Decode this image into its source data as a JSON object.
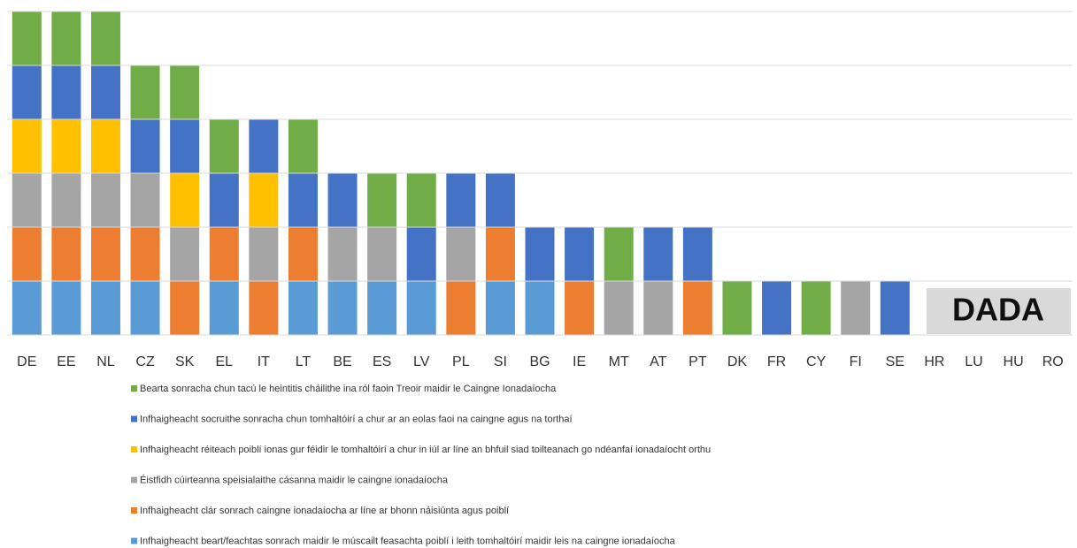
{
  "chart_data": {
    "type": "stacked_bar",
    "categories": [
      "DE",
      "EE",
      "NL",
      "CZ",
      "SK",
      "EL",
      "IT",
      "LT",
      "BE",
      "ES",
      "LV",
      "PL",
      "SI",
      "BG",
      "IE",
      "MT",
      "AT",
      "PT",
      "DK",
      "FR",
      "CY",
      "FI",
      "SE",
      "HR",
      "LU",
      "HU",
      "RO"
    ],
    "series": [
      {
        "name": "Infhaigheacht beart/feachtas sonrach maidir le múscailt feasachta poiblí i leith tomhaltóirí maidir leis na caingne ionadaíocha",
        "color": "#5b9bd5",
        "values": [
          1,
          1,
          1,
          1,
          0,
          1,
          0,
          1,
          1,
          1,
          1,
          0,
          1,
          1,
          0,
          0,
          0,
          0,
          0,
          0,
          0,
          0,
          0,
          0,
          0,
          0,
          0
        ]
      },
      {
        "name": "Infhaigheacht clár sonrach caingne ionadaíocha ar líne ar bhonn náisiúnta agus poiblí",
        "color": "#ed7d31",
        "values": [
          1,
          1,
          1,
          1,
          1,
          1,
          1,
          1,
          0,
          0,
          0,
          1,
          1,
          0,
          1,
          0,
          0,
          1,
          0,
          0,
          0,
          0,
          0,
          0,
          0,
          0,
          0
        ]
      },
      {
        "name": "Éistfidh cúirteanna speisialaithe cásanna maidir le caingne ionadaíocha",
        "color": "#a5a5a5",
        "values": [
          1,
          1,
          1,
          1,
          1,
          0,
          1,
          0,
          1,
          1,
          0,
          1,
          0,
          0,
          0,
          1,
          1,
          0,
          0,
          0,
          0,
          1,
          0,
          0,
          0,
          0,
          0
        ]
      },
      {
        "name": "Infhaigheacht réiteach poiblí ionas gur féidir le tomhaltóirí a chur in iúl ar líne an bhfuil siad toilteanach go ndéanfaí ionadaíocht orthu",
        "color": "#ffc000",
        "values": [
          1,
          1,
          1,
          0,
          1,
          0,
          1,
          0,
          0,
          0,
          0,
          0,
          0,
          0,
          0,
          0,
          0,
          0,
          0,
          0,
          0,
          0,
          0,
          0,
          0,
          0,
          0
        ]
      },
      {
        "name": "Infhaigheacht socruithe sonracha chun tomhaltóirí a chur ar an eolas faoi na caingne agus na torthaí",
        "color": "#4472c4",
        "values": [
          1,
          1,
          1,
          1,
          1,
          1,
          1,
          1,
          1,
          0,
          1,
          1,
          1,
          1,
          1,
          0,
          1,
          1,
          0,
          1,
          0,
          0,
          1,
          0,
          0,
          0,
          0
        ]
      },
      {
        "name": "Bearta sonracha chun tacú le heintitis cháilithe ina ról faoin Treoir maidir le Caingne Ionadaíocha",
        "color": "#70ad47",
        "values": [
          1,
          1,
          1,
          1,
          1,
          1,
          0,
          1,
          0,
          1,
          1,
          0,
          0,
          0,
          0,
          1,
          0,
          0,
          1,
          0,
          1,
          0,
          0,
          0,
          0,
          0,
          0
        ]
      }
    ],
    "ylim": [
      0,
      6
    ],
    "yticks": [
      0,
      1,
      2,
      3,
      4,
      5,
      6
    ],
    "grid": true,
    "annotation": "DADA"
  }
}
